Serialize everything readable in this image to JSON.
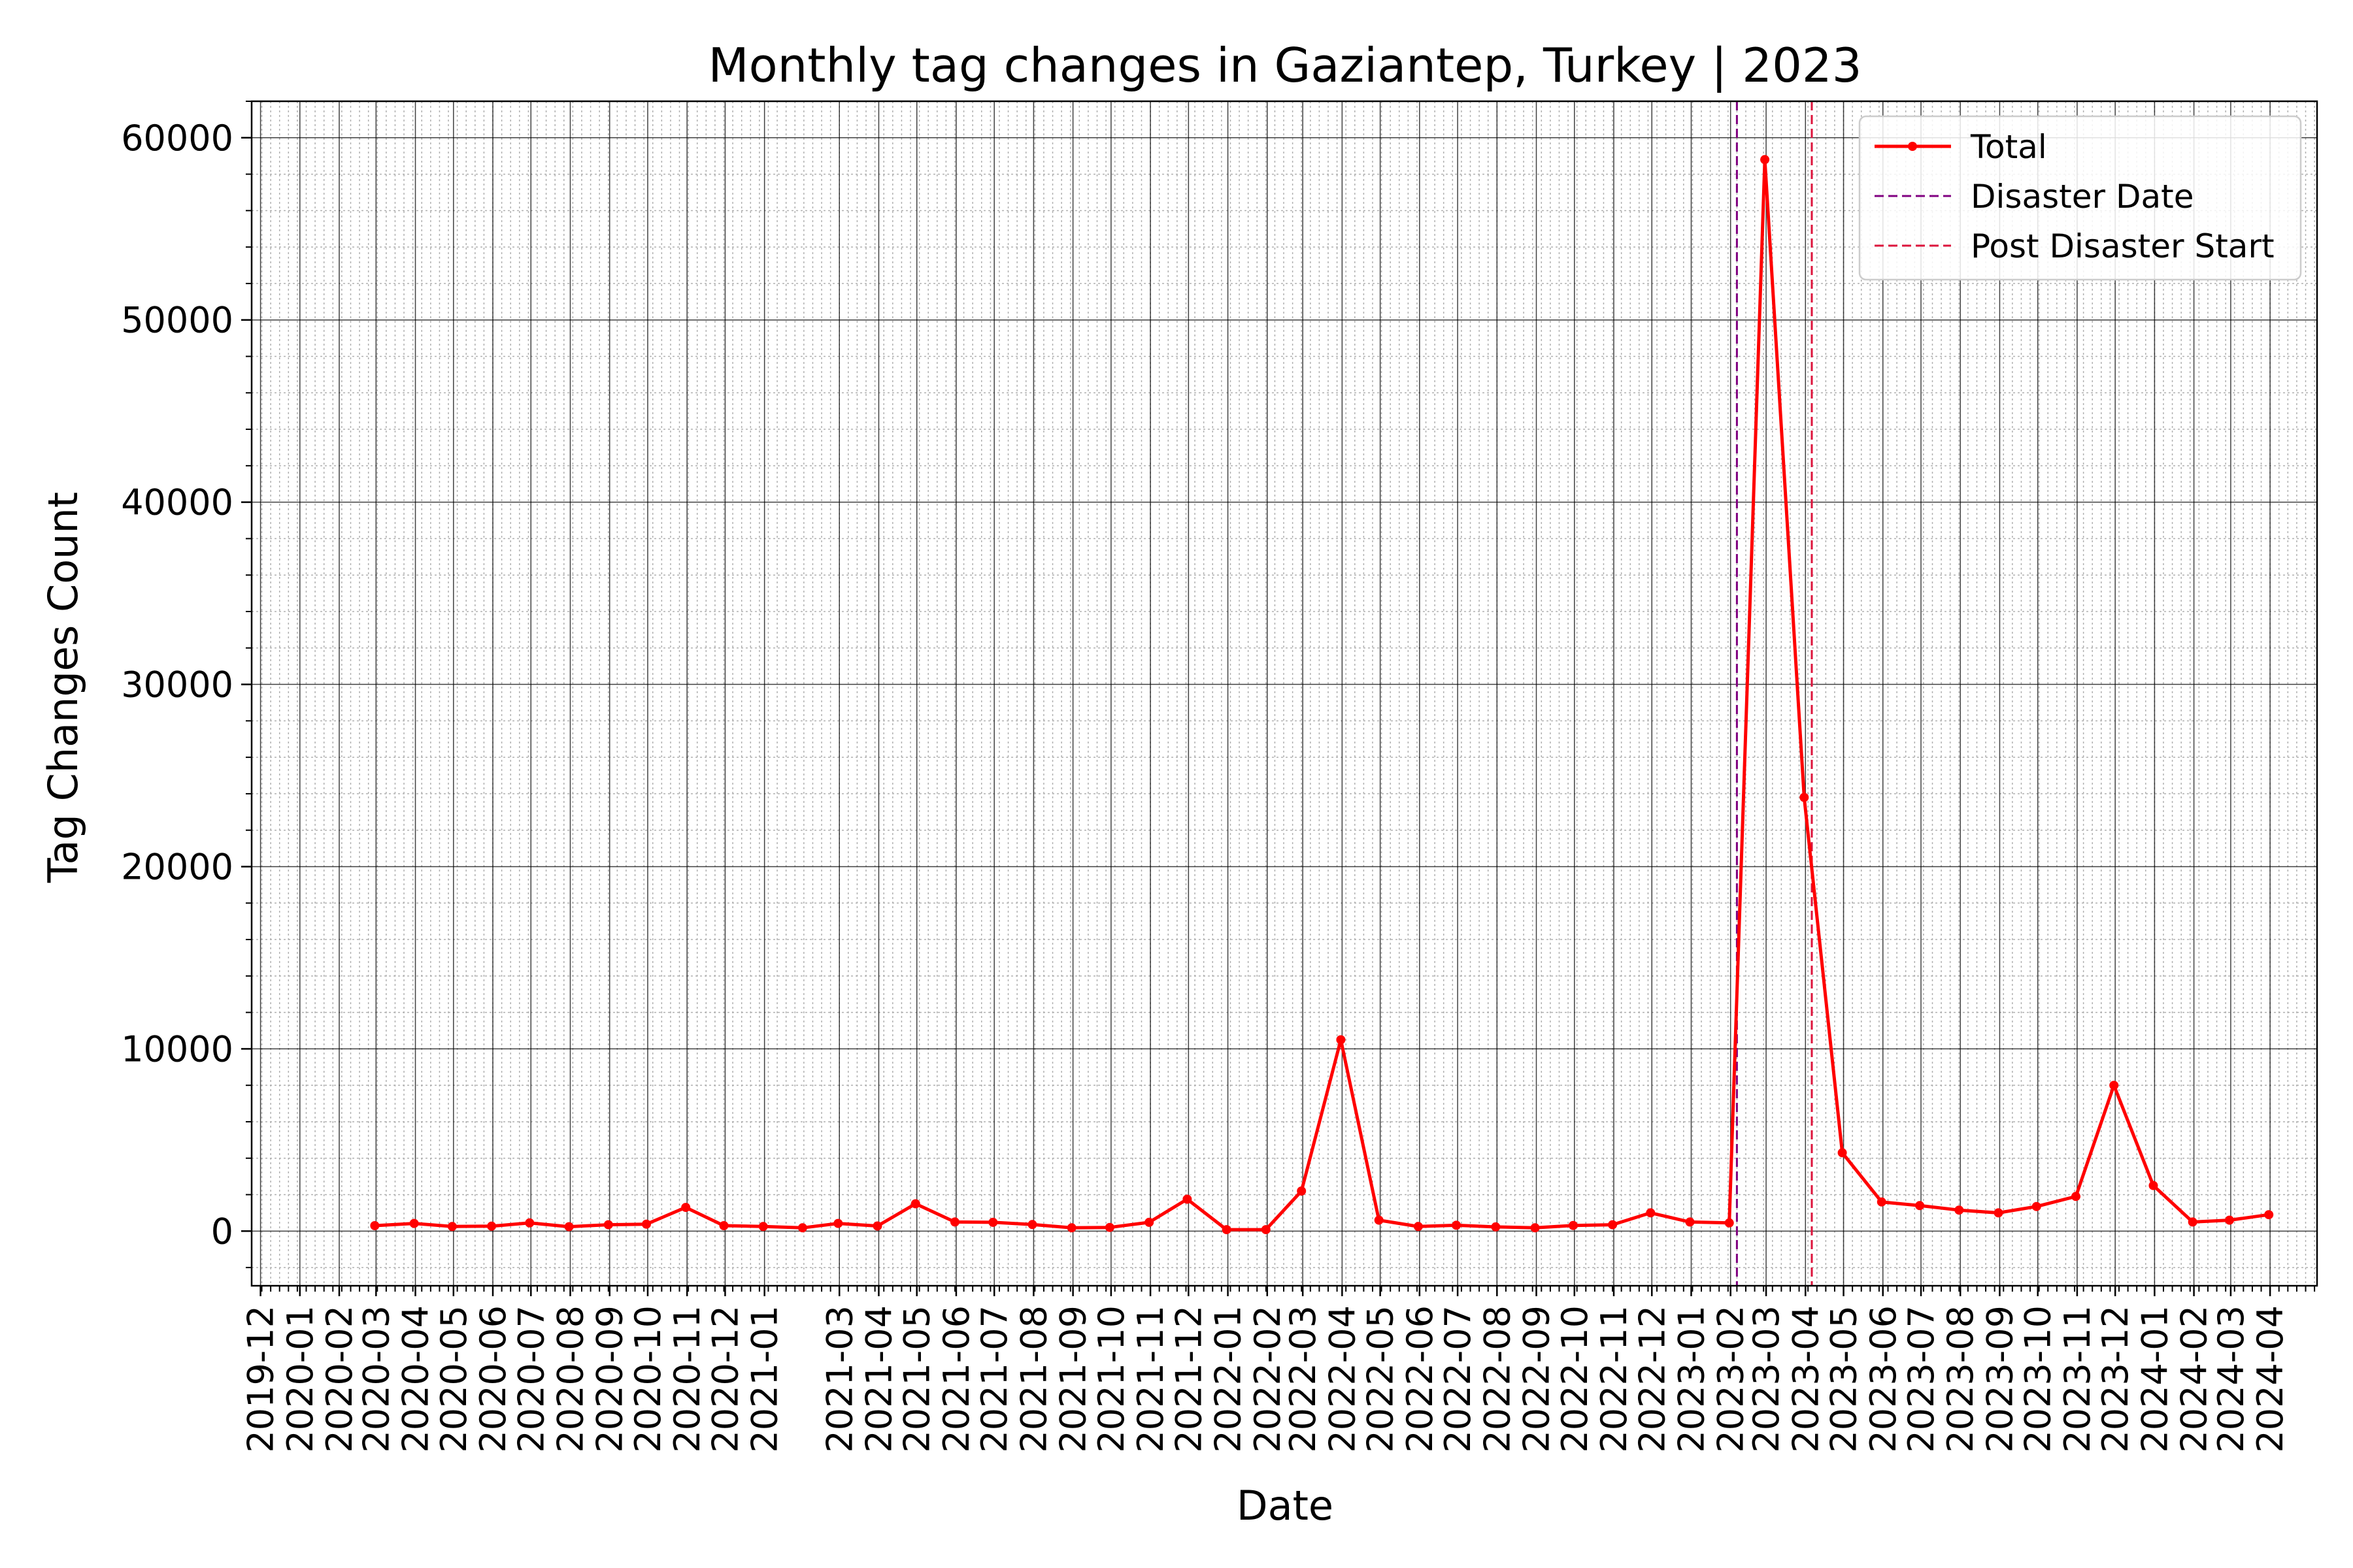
{
  "chart_data": {
    "type": "line",
    "title": "Monthly tag changes in Gaziantep, Turkey | 2023",
    "xlabel": "Date",
    "ylabel": "Tag Changes Count",
    "xlim": [
      "2019-11-24",
      "2024-05-08"
    ],
    "ylim": [
      -3000,
      62000
    ],
    "x_ticks": [
      "2019-12",
      "2020-01",
      "2020-02",
      "2020-03",
      "2020-04",
      "2020-05",
      "2020-06",
      "2020-07",
      "2020-08",
      "2020-09",
      "2020-10",
      "2020-11",
      "2020-12",
      "2021-01",
      "2021-03",
      "2021-04",
      "2021-05",
      "2021-06",
      "2021-07",
      "2021-08",
      "2021-09",
      "2021-10",
      "2021-11",
      "2021-12",
      "2022-01",
      "2022-02",
      "2022-03",
      "2022-04",
      "2022-05",
      "2022-06",
      "2022-07",
      "2022-08",
      "2022-09",
      "2022-10",
      "2022-11",
      "2022-12",
      "2023-01",
      "2023-02",
      "2023-03",
      "2023-04",
      "2023-05",
      "2023-06",
      "2023-07",
      "2023-08",
      "2023-09",
      "2023-10",
      "2023-11",
      "2023-12",
      "2024-01",
      "2024-02",
      "2024-03",
      "2024-04"
    ],
    "y_ticks": [
      0,
      10000,
      20000,
      30000,
      40000,
      50000,
      60000
    ],
    "grid": true,
    "legend_position": "top-right",
    "series": [
      {
        "name": "Total",
        "color": "#ff0000",
        "x": [
          "2020-02-29",
          "2020-03-31",
          "2020-04-30",
          "2020-05-31",
          "2020-06-30",
          "2020-07-31",
          "2020-08-31",
          "2020-09-30",
          "2020-10-31",
          "2020-11-30",
          "2020-12-31",
          "2021-01-31",
          "2021-02-28",
          "2021-03-31",
          "2021-04-30",
          "2021-05-31",
          "2021-06-30",
          "2021-07-31",
          "2021-08-31",
          "2021-09-30",
          "2021-10-31",
          "2021-11-30",
          "2021-12-31",
          "2022-01-31",
          "2022-02-28",
          "2022-03-31",
          "2022-04-30",
          "2022-05-31",
          "2022-06-30",
          "2022-07-31",
          "2022-08-31",
          "2022-09-30",
          "2022-10-31",
          "2022-11-30",
          "2022-12-31",
          "2023-01-31",
          "2023-02-28",
          "2023-03-31",
          "2023-04-30",
          "2023-05-31",
          "2023-06-30",
          "2023-07-31",
          "2023-08-31",
          "2023-09-30",
          "2023-10-31",
          "2023-11-30",
          "2023-12-31",
          "2024-01-31",
          "2024-02-29",
          "2024-03-31"
        ],
        "values": [
          300,
          420,
          250,
          270,
          450,
          240,
          350,
          380,
          1300,
          300,
          250,
          180,
          420,
          280,
          1500,
          500,
          480,
          360,
          180,
          200,
          480,
          1750,
          80,
          80,
          2200,
          10500,
          600,
          250,
          320,
          230,
          180,
          310,
          350,
          1000,
          500,
          450,
          58800,
          23800,
          4300,
          1600,
          1400,
          1150,
          1000,
          1350,
          1900,
          8000,
          2500,
          500,
          600,
          900
        ]
      }
    ],
    "vlines": [
      {
        "name": "Disaster Date",
        "date": "2023-02-06",
        "color": "#800080"
      },
      {
        "name": "Post Disaster Start",
        "date": "2023-04-06",
        "color": "#dc143c"
      }
    ]
  }
}
